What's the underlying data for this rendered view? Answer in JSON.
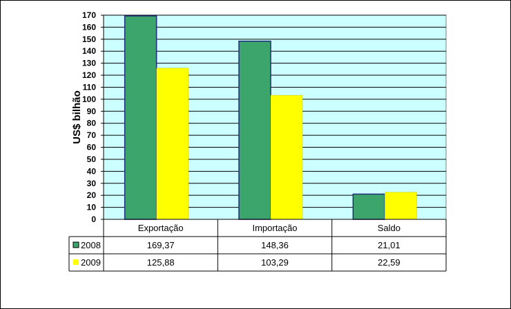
{
  "chart_data": {
    "type": "bar",
    "ylabel": "US$ bilhão",
    "xlabel": "",
    "title": "",
    "ylim": [
      0,
      170
    ],
    "yticks": [
      0,
      10,
      20,
      30,
      40,
      50,
      60,
      70,
      80,
      90,
      100,
      110,
      120,
      130,
      140,
      150,
      160,
      170
    ],
    "categories": [
      "Exportação",
      "Importação",
      "Saldo"
    ],
    "series": [
      {
        "name": "2008",
        "color": "#3CA56C",
        "values": [
          169.37,
          148.36,
          21.01
        ],
        "labels": [
          "169,37",
          "148,36",
          "21,01"
        ]
      },
      {
        "name": "2009",
        "color": "#FFFF00",
        "values": [
          125.88,
          103.29,
          22.59
        ],
        "labels": [
          "125,88",
          "103,29",
          "22,59"
        ]
      }
    ],
    "plot_background": "#CCFFFF",
    "grid": true,
    "legend": "data-table"
  }
}
